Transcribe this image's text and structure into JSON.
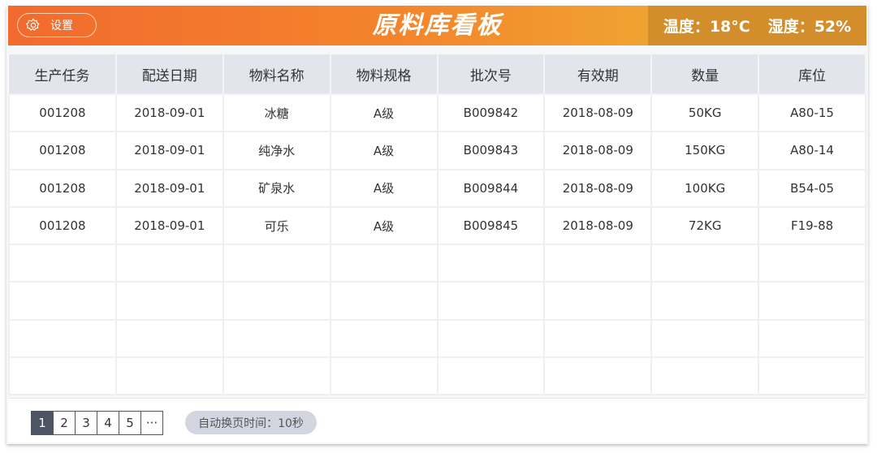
{
  "header": {
    "settings_label": "设置",
    "title": "原料库看板",
    "temperature": "温度：18°C",
    "humidity": "湿度：52%",
    "colors": {
      "gradient_start": "#f26a2e",
      "gradient_end": "#efa331",
      "env_bg": "#d38e2b"
    }
  },
  "table": {
    "columns": [
      "生产任务",
      "配送日期",
      "物料名称",
      "物料规格",
      "批次号",
      "有效期",
      "数量",
      "库位"
    ],
    "rows": [
      [
        "001208",
        "2018-09-01",
        "冰糖",
        "A级",
        "B009842",
        "2018-08-09",
        "50KG",
        "A80-15"
      ],
      [
        "001208",
        "2018-09-01",
        "纯净水",
        "A级",
        "B009843",
        "2018-08-09",
        "150KG",
        "A80-14"
      ],
      [
        "001208",
        "2018-09-01",
        "矿泉水",
        "A级",
        "B009844",
        "2018-08-09",
        "100KG",
        "B54-05"
      ],
      [
        "001208",
        "2018-09-01",
        "可乐",
        "A级",
        "B009845",
        "2018-08-09",
        "72KG",
        "F19-88"
      ]
    ],
    "empty_rows": 4
  },
  "pagination": {
    "pages": [
      "1",
      "2",
      "3",
      "4",
      "5",
      "···"
    ],
    "active": "1"
  },
  "auto_page": "自动换页时间：10秒"
}
